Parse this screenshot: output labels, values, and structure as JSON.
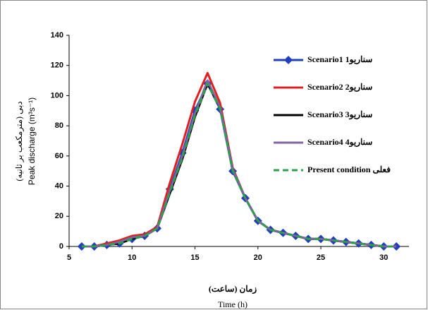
{
  "chart_data": {
    "type": "line",
    "x_label": "زمان (ساعت)",
    "x_label_en": "Time (h)",
    "y_label": "Peak discharge (m³s⁻¹)",
    "y_label_fa": "دبی (مترمکعب بر ثانیه)",
    "x": [
      6,
      7,
      8,
      9,
      10,
      11,
      12,
      13,
      14,
      15,
      16,
      17,
      18,
      19,
      20,
      21,
      22,
      23,
      24,
      25,
      26,
      27,
      28,
      29,
      30,
      31
    ],
    "series": [
      {
        "name": "Scenario1 سناريو1",
        "color": "#1f3fbf",
        "marker": "diamond",
        "dashed": false,
        "values": [
          0,
          0,
          1,
          2,
          5,
          7,
          12,
          38,
          62,
          90,
          108,
          91,
          50,
          32,
          17,
          11,
          9,
          7,
          5,
          5,
          4,
          3,
          2,
          1,
          0,
          0
        ]
      },
      {
        "name": "Scenario2 سناريو2",
        "color": "#e02020",
        "marker": "none",
        "dashed": false,
        "values": [
          0,
          0,
          2,
          4,
          7,
          8,
          13,
          42,
          68,
          96,
          115,
          95,
          52,
          32,
          17,
          11,
          9,
          7,
          5,
          5,
          4,
          3,
          2,
          1,
          0,
          0
        ]
      },
      {
        "name": "Scenario3 سناريو3",
        "color": "#000000",
        "marker": "none",
        "dashed": false,
        "values": [
          0,
          0,
          1,
          2,
          5,
          7,
          12,
          35,
          58,
          86,
          108,
          92,
          51,
          32,
          17,
          11,
          9,
          7,
          5,
          5,
          4,
          3,
          2,
          1,
          0,
          0
        ]
      },
      {
        "name": "Scenario4 سناريو4",
        "color": "#8064a2",
        "marker": "none",
        "dashed": false,
        "values": [
          0,
          0,
          1,
          3,
          6,
          7,
          12,
          37,
          60,
          88,
          110,
          92,
          51,
          32,
          17,
          11,
          9,
          7,
          5,
          5,
          4,
          3,
          2,
          1,
          0,
          0
        ]
      },
      {
        "name": "Present condition فعلی",
        "color": "#2ca04c",
        "marker": "none",
        "dashed": true,
        "values": [
          0,
          0,
          1,
          2,
          5,
          7,
          12,
          36,
          59,
          87,
          108,
          91,
          50,
          32,
          17,
          11,
          9,
          7,
          5,
          5,
          4,
          3,
          2,
          1,
          0,
          0
        ]
      }
    ],
    "xlim": [
      5,
      32
    ],
    "xticks": [
      5,
      10,
      15,
      20,
      25,
      30
    ],
    "ylim": [
      0,
      140
    ],
    "yticks": [
      0,
      20,
      40,
      60,
      80,
      100,
      120,
      140
    ]
  }
}
